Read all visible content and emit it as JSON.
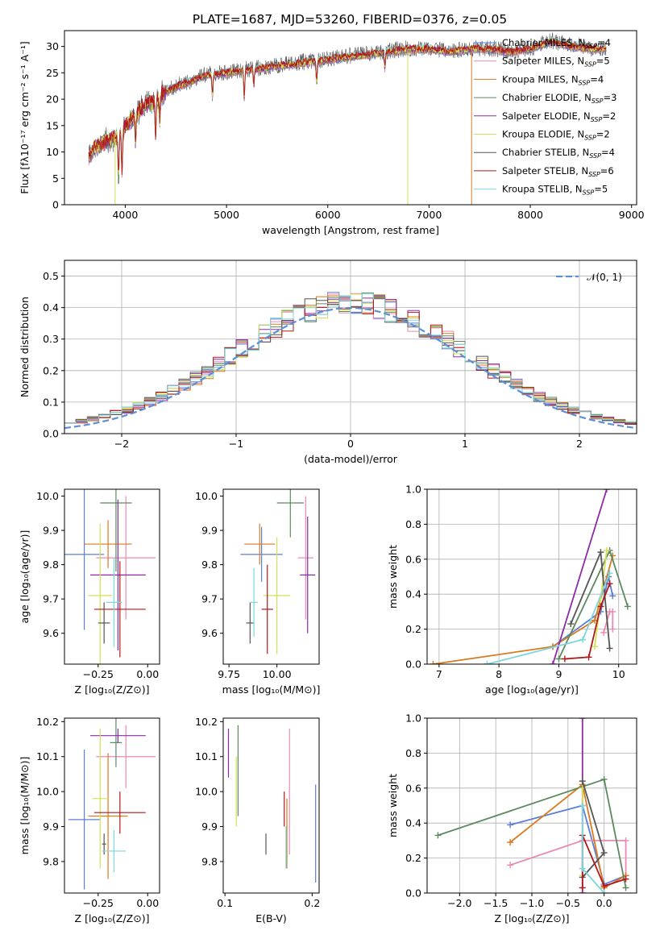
{
  "figure": {
    "title": "PLATE=1687, MJD=53260, FIBERID=0376, z=0.05"
  },
  "series": [
    {
      "name": "Chabrier MILES",
      "nssp": "4",
      "color": "#5b7fd6"
    },
    {
      "name": "Salpeter MILES",
      "nssp": "5",
      "color": "#e88ab4"
    },
    {
      "name": "Kroupa MILES",
      "nssp": "4",
      "color": "#d97a1f"
    },
    {
      "name": "Chabrier ELODIE",
      "nssp": "3",
      "color": "#5a8a5e"
    },
    {
      "name": "Salpeter ELODIE",
      "nssp": "2",
      "color": "#8e2aa8"
    },
    {
      "name": "Kroupa ELODIE",
      "nssp": "2",
      "color": "#d4e054"
    },
    {
      "name": "Chabrier STELIB",
      "nssp": "4",
      "color": "#555555"
    },
    {
      "name": "Salpeter STELIB",
      "nssp": "6",
      "color": "#b01818"
    },
    {
      "name": "Kroupa STELIB",
      "nssp": "5",
      "color": "#7dd6de"
    }
  ],
  "legend_nssp_label": "N",
  "legend_nssp_sub": "SSP",
  "chart_data": [
    {
      "id": "spectrum",
      "type": "line",
      "title": "PLATE=1687, MJD=53260, FIBERID=0376, z=0.05",
      "xlabel": "wavelength [Angstrom, rest frame]",
      "ylabel": "Flux [fλ10⁻¹⁷ erg cm⁻² s⁻¹ A⁻¹]",
      "xlim": [
        3400,
        9050
      ],
      "ylim": [
        0,
        33
      ],
      "xticks": [
        4000,
        5000,
        6000,
        7000,
        8000,
        9000
      ],
      "yticks": [
        0,
        5,
        10,
        15,
        20,
        25,
        30
      ],
      "grid": false,
      "legend": "top-right",
      "continuum": [
        [
          3640,
          9
        ],
        [
          3700,
          11
        ],
        [
          3800,
          12
        ],
        [
          3900,
          12.5
        ],
        [
          4000,
          15
        ],
        [
          4100,
          17
        ],
        [
          4200,
          19
        ],
        [
          4300,
          19.5
        ],
        [
          4400,
          21.5
        ],
        [
          4600,
          23
        ],
        [
          4800,
          24.5
        ],
        [
          5000,
          25
        ],
        [
          5200,
          25.5
        ],
        [
          5400,
          26
        ],
        [
          5600,
          26.5
        ],
        [
          5800,
          27
        ],
        [
          6000,
          27.5
        ],
        [
          6200,
          28
        ],
        [
          6400,
          28.5
        ],
        [
          6600,
          29
        ],
        [
          6800,
          29.5
        ],
        [
          7000,
          29.5
        ],
        [
          7200,
          29
        ],
        [
          7400,
          29.5
        ],
        [
          7600,
          29.5
        ],
        [
          7800,
          29
        ],
        [
          8000,
          29.5
        ],
        [
          8200,
          31
        ],
        [
          8400,
          30
        ],
        [
          8600,
          29.5
        ],
        [
          8750,
          29.5
        ]
      ],
      "absorption": [
        [
          3934,
          8
        ],
        [
          3968,
          8
        ],
        [
          4102,
          5
        ],
        [
          4300,
          6
        ],
        [
          4340,
          4
        ],
        [
          4861,
          4
        ],
        [
          5175,
          5
        ],
        [
          5270,
          3
        ],
        [
          5890,
          4
        ],
        [
          6563,
          3
        ]
      ],
      "dropouts": [
        {
          "x": 3900,
          "color": "#d4e054"
        },
        {
          "x": 6790,
          "color": "#d4e054"
        },
        {
          "x": 7420,
          "color": "#d97a1f"
        }
      ]
    },
    {
      "id": "residuals",
      "type": "line",
      "xlabel": "(data-model)/error",
      "ylabel": "Normed distribution",
      "xlim": [
        -2.5,
        2.5
      ],
      "ylim": [
        0,
        0.55
      ],
      "xticks": [
        -2,
        -1,
        0,
        1,
        2
      ],
      "yticks": [
        0.0,
        0.1,
        0.2,
        0.3,
        0.4,
        0.5
      ],
      "grid": true,
      "legend": "top-right",
      "normal_label": "𝒩(0, 1)",
      "normal_color": "#5b8fd6",
      "bin_width": 0.1,
      "bins_start": -2.5
    },
    {
      "id": "age_vs_Z",
      "type": "scatter",
      "xlabel": "Z [log₁₀(Z/Z⊙)]",
      "ylabel": "age  [log₁₀(age/yr)]",
      "xlim": [
        -0.42,
        0.06
      ],
      "ylim": [
        9.51,
        10.02
      ],
      "xticks": [
        -0.25,
        0.0
      ],
      "yticks": [
        9.6,
        9.7,
        9.8,
        9.9,
        10.0
      ],
      "xticklabels": [
        "−0.25",
        "0.00"
      ],
      "points": [
        {
          "s": 0,
          "x": -0.32,
          "y": 9.83,
          "xerr": 0.1,
          "yerr": 0.22
        },
        {
          "s": 1,
          "x": -0.11,
          "y": 9.82,
          "xerr": 0.15,
          "yerr": 0.18
        },
        {
          "s": 2,
          "x": -0.2,
          "y": 9.86,
          "xerr": 0.12,
          "yerr": 0.07
        },
        {
          "s": 3,
          "x": -0.16,
          "y": 9.98,
          "xerr": 0.08,
          "yerr": 0.2
        },
        {
          "s": 4,
          "x": -0.15,
          "y": 9.77,
          "xerr": 0.14,
          "yerr": 0.22
        },
        {
          "s": 5,
          "x": -0.24,
          "y": 9.71,
          "xerr": 0.06,
          "yerr": 0.21
        },
        {
          "s": 6,
          "x": -0.22,
          "y": 9.63,
          "xerr": 0.03,
          "yerr": 0.06
        },
        {
          "s": 7,
          "x": -0.14,
          "y": 9.67,
          "xerr": 0.13,
          "yerr": 0.14
        },
        {
          "s": 8,
          "x": -0.17,
          "y": 9.69,
          "xerr": 0.04,
          "yerr": 0.13
        }
      ]
    },
    {
      "id": "age_vs_mass",
      "type": "scatter",
      "xlabel": "mass [log₁₀(M/M⊙)]",
      "ylabel": "",
      "xlim": [
        9.72,
        10.22
      ],
      "ylim": [
        9.51,
        10.02
      ],
      "xticks": [
        9.75,
        10.0
      ],
      "yticks": [
        9.6,
        9.7,
        9.8,
        9.9,
        10.0
      ],
      "xticklabels": [
        "9.75",
        "10.00"
      ],
      "points": [
        {
          "s": 0,
          "x": 9.92,
          "y": 9.83,
          "xerr": 0.11,
          "yerr": 0.08
        },
        {
          "s": 1,
          "x": 10.15,
          "y": 9.82,
          "xerr": 0.04,
          "yerr": 0.18
        },
        {
          "s": 2,
          "x": 9.91,
          "y": 9.86,
          "xerr": 0.08,
          "yerr": 0.06
        },
        {
          "s": 3,
          "x": 10.07,
          "y": 9.98,
          "xerr": 0.07,
          "yerr": 0.1
        },
        {
          "s": 4,
          "x": 10.16,
          "y": 9.77,
          "xerr": 0.04,
          "yerr": 0.17
        },
        {
          "s": 5,
          "x": 10.0,
          "y": 9.71,
          "xerr": 0.07,
          "yerr": 0.17
        },
        {
          "s": 6,
          "x": 9.86,
          "y": 9.63,
          "xerr": 0.02,
          "yerr": 0.06
        },
        {
          "s": 7,
          "x": 9.95,
          "y": 9.67,
          "xerr": 0.03,
          "yerr": 0.13
        },
        {
          "s": 8,
          "x": 9.88,
          "y": 9.69,
          "xerr": 0.02,
          "yerr": 0.1
        }
      ]
    },
    {
      "id": "weight_vs_age",
      "type": "line",
      "xlabel": "age  [log₁₀(age/yr)]",
      "ylabel": "mass weight",
      "xlim": [
        6.8,
        10.3
      ],
      "ylim": [
        0,
        1
      ],
      "xticks": [
        7,
        8,
        9,
        10
      ],
      "yticks": [
        0.0,
        0.2,
        0.4,
        0.6,
        0.8,
        1.0
      ],
      "grid": true,
      "lines": [
        {
          "s": 0,
          "pts": [
            [
              8.9,
              0.1
            ],
            [
              9.7,
              0.3
            ],
            [
              9.83,
              0.5
            ],
            [
              9.9,
              0.39
            ]
          ]
        },
        {
          "s": 1,
          "pts": [
            [
              9.75,
              0.18
            ],
            [
              9.85,
              0.3
            ],
            [
              9.9,
              0.3
            ],
            [
              9.9,
              0.2
            ]
          ]
        },
        {
          "s": 2,
          "pts": [
            [
              6.9,
              0.0
            ],
            [
              8.9,
              0.1
            ],
            [
              9.6,
              0.25
            ],
            [
              9.9,
              0.62
            ]
          ]
        },
        {
          "s": 3,
          "pts": [
            [
              9.0,
              0.03
            ],
            [
              9.85,
              0.65
            ],
            [
              10.15,
              0.33
            ]
          ]
        },
        {
          "s": 4,
          "pts": [
            [
              8.9,
              0.0
            ],
            [
              9.8,
              1.0
            ]
          ]
        },
        {
          "s": 5,
          "pts": [
            [
              9.6,
              0.1
            ],
            [
              9.8,
              0.65
            ]
          ]
        },
        {
          "s": 6,
          "pts": [
            [
              9.2,
              0.23
            ],
            [
              9.7,
              0.64
            ],
            [
              9.85,
              0.09
            ]
          ]
        },
        {
          "s": 7,
          "pts": [
            [
              9.1,
              0.03
            ],
            [
              9.5,
              0.04
            ],
            [
              9.7,
              0.33
            ],
            [
              9.85,
              0.46
            ]
          ]
        },
        {
          "s": 8,
          "pts": [
            [
              7.8,
              0.0
            ],
            [
              9.4,
              0.14
            ],
            [
              9.85,
              0.52
            ]
          ]
        }
      ]
    },
    {
      "id": "mass_vs_Z",
      "type": "scatter",
      "xlabel": "Z [log₁₀(Z/Z⊙)]",
      "ylabel": "mass [log₁₀(M/M⊙)]",
      "xlim": [
        -0.42,
        0.06
      ],
      "ylim": [
        9.71,
        10.21
      ],
      "xticks": [
        -0.25,
        0.0
      ],
      "yticks": [
        9.8,
        9.9,
        10.0,
        10.1,
        10.2
      ],
      "xticklabels": [
        "−0.25",
        "0.00"
      ],
      "points": [
        {
          "s": 0,
          "x": -0.32,
          "y": 9.92,
          "xerr": 0.08,
          "yerr": 0.2
        },
        {
          "s": 1,
          "x": -0.11,
          "y": 10.1,
          "xerr": 0.15,
          "yerr": 0.09
        },
        {
          "s": 2,
          "x": -0.2,
          "y": 9.93,
          "xerr": 0.1,
          "yerr": 0.18
        },
        {
          "s": 3,
          "x": -0.16,
          "y": 10.14,
          "xerr": 0.03,
          "yerr": 0.07
        },
        {
          "s": 4,
          "x": -0.15,
          "y": 10.16,
          "xerr": 0.14,
          "yerr": 0.02
        },
        {
          "s": 5,
          "x": -0.24,
          "y": 9.98,
          "xerr": 0.04,
          "yerr": 0.2
        },
        {
          "s": 6,
          "x": -0.22,
          "y": 9.85,
          "xerr": 0.01,
          "yerr": 0.03
        },
        {
          "s": 7,
          "x": -0.14,
          "y": 9.94,
          "xerr": 0.13,
          "yerr": 0.06
        },
        {
          "s": 8,
          "x": -0.17,
          "y": 9.83,
          "xerr": 0.06,
          "yerr": 0.06
        }
      ]
    },
    {
      "id": "mass_vs_ebv",
      "type": "scatter",
      "xlabel": "E(B-V)",
      "ylabel": "",
      "xlim": [
        0.098,
        0.208
      ],
      "ylim": [
        9.71,
        10.21
      ],
      "xticks": [
        0.1,
        0.2
      ],
      "yticks": [
        9.8,
        9.9,
        10.0,
        10.1,
        10.2
      ],
      "xticklabels": [
        "0.1",
        "0.2"
      ],
      "points": [
        {
          "s": 0,
          "x": 0.204,
          "y": 9.88,
          "xerr": 0,
          "yerr": 0.14
        },
        {
          "s": 1,
          "x": 0.174,
          "y": 10.0,
          "xerr": 0,
          "yerr": 0.18
        },
        {
          "s": 2,
          "x": 0.171,
          "y": 9.88,
          "xerr": 0,
          "yerr": 0.1
        },
        {
          "s": 3,
          "x": 0.115,
          "y": 10.06,
          "xerr": 0,
          "yerr": 0.13
        },
        {
          "s": 4,
          "x": 0.104,
          "y": 10.11,
          "xerr": 0,
          "yerr": 0.07
        },
        {
          "s": 5,
          "x": 0.113,
          "y": 10.0,
          "xerr": 0,
          "yerr": 0.1
        },
        {
          "s": 6,
          "x": 0.147,
          "y": 9.85,
          "xerr": 0,
          "yerr": 0.03
        },
        {
          "s": 7,
          "x": 0.168,
          "y": 9.95,
          "xerr": 0,
          "yerr": 0.05
        },
        {
          "s": 8,
          "x": 0.17,
          "y": 9.84,
          "xerr": 0,
          "yerr": 0.06
        }
      ]
    },
    {
      "id": "weight_vs_Z",
      "type": "line",
      "xlabel": "Z [log₁₀(Z/Z⊙)]",
      "ylabel": "mass weight",
      "xlim": [
        -2.45,
        0.45
      ],
      "ylim": [
        0,
        1
      ],
      "xticks": [
        -2.0,
        -1.5,
        -1.0,
        -0.5,
        0.0
      ],
      "xticklabels": [
        "−2.0",
        "−1.5",
        "−1.0",
        "−0.5",
        "0.0"
      ],
      "yticks": [
        0.0,
        0.2,
        0.4,
        0.6,
        0.8,
        1.0
      ],
      "grid": true,
      "lines": [
        {
          "s": 0,
          "pts": [
            [
              -1.3,
              0.39
            ],
            [
              -0.3,
              0.5
            ],
            [
              0.0,
              0.05
            ],
            [
              0.3,
              0.1
            ]
          ]
        },
        {
          "s": 1,
          "pts": [
            [
              -1.3,
              0.16
            ],
            [
              -0.3,
              0.3
            ],
            [
              0.3,
              0.3
            ],
            [
              0.3,
              0.1
            ]
          ]
        },
        {
          "s": 2,
          "pts": [
            [
              -1.3,
              0.29
            ],
            [
              -0.3,
              0.62
            ],
            [
              0.0,
              0.03
            ],
            [
              0.3,
              0.1
            ]
          ]
        },
        {
          "s": 3,
          "pts": [
            [
              -2.3,
              0.33
            ],
            [
              0.0,
              0.65
            ],
            [
              0.3,
              0.03
            ]
          ]
        },
        {
          "s": 4,
          "pts": [
            [
              -0.3,
              0.0
            ],
            [
              -0.3,
              1.0
            ]
          ]
        },
        {
          "s": 5,
          "pts": [
            [
              -0.3,
              0.1
            ],
            [
              -0.3,
              0.6
            ]
          ]
        },
        {
          "s": 6,
          "pts": [
            [
              -0.3,
              0.09
            ],
            [
              0.0,
              0.23
            ],
            [
              -0.3,
              0.64
            ]
          ]
        },
        {
          "s": 7,
          "pts": [
            [
              -0.3,
              0.03
            ],
            [
              -0.3,
              0.33
            ],
            [
              0.0,
              0.04
            ],
            [
              0.3,
              0.08
            ]
          ]
        },
        {
          "s": 8,
          "pts": [
            [
              -0.3,
              0.5
            ],
            [
              -0.3,
              0.14
            ],
            [
              0.0,
              0.0
            ]
          ]
        }
      ]
    }
  ]
}
